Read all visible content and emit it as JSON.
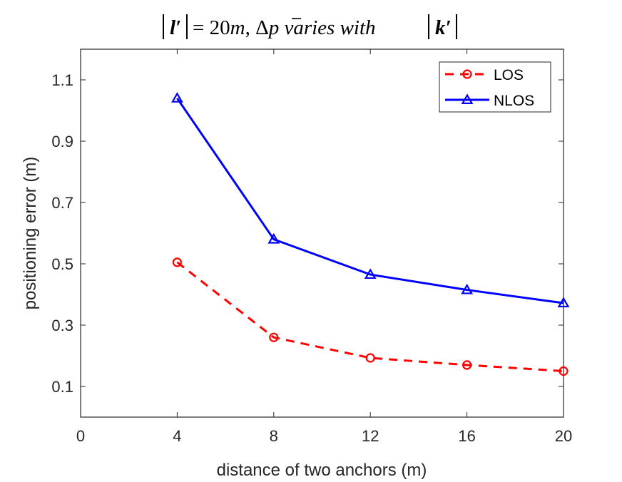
{
  "chart_data": {
    "type": "line",
    "title": "|l′| = 20m, Δp̄ varies with |k′|",
    "xlabel": "distance of two anchors (m)",
    "ylabel": "positioning error (m)",
    "xlim": [
      0,
      20
    ],
    "ylim": [
      0,
      1.2
    ],
    "xticks": [
      0,
      4,
      8,
      12,
      16,
      20
    ],
    "yticks": [
      0.1,
      0.3,
      0.5,
      0.7,
      0.9,
      1.1
    ],
    "x": [
      4,
      8,
      12,
      16,
      20
    ],
    "series": [
      {
        "name": "LOS",
        "values": [
          0.505,
          0.26,
          0.193,
          0.17,
          0.15
        ],
        "color": "#ff0000",
        "line_style": "dashed",
        "marker": "circle"
      },
      {
        "name": "NLOS",
        "values": [
          1.04,
          0.58,
          0.465,
          0.415,
          0.372
        ],
        "color": "#0000ff",
        "line_style": "solid",
        "marker": "triangle"
      }
    ],
    "legend_position": "top-right",
    "grid": false
  }
}
